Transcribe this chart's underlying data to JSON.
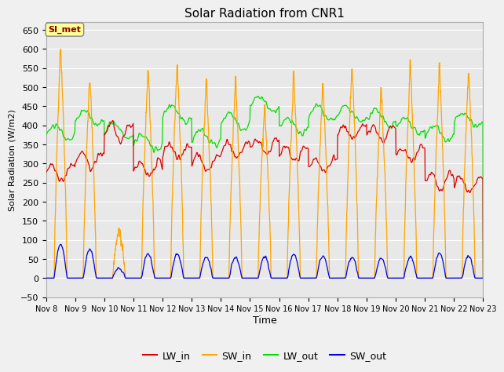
{
  "title": "Solar Radiation from CNR1",
  "ylabel": "Solar Radiation (W/m2)",
  "xlabel": "Time",
  "ylim": [
    -50,
    670
  ],
  "yticks": [
    -50,
    0,
    50,
    100,
    150,
    200,
    250,
    300,
    350,
    400,
    450,
    500,
    550,
    600,
    650
  ],
  "xtick_labels": [
    "Nov 8",
    "Nov 9",
    "Nov 10",
    "Nov 11",
    "Nov 12",
    "Nov 13",
    "Nov 14",
    "Nov 15",
    "Nov 16",
    "Nov 17",
    "Nov 18",
    "Nov 19",
    "Nov 20",
    "Nov 21",
    "Nov 22",
    "Nov 23"
  ],
  "annotation_text": "SI_met",
  "annotation_color": "#8B0000",
  "annotation_bg": "#FFFF99",
  "fig_bg_color": "#F0F0F0",
  "plot_bg_color": "#E8E8E8",
  "grid_color": "#FFFFFF",
  "colors": {
    "LW_in": "#DD0000",
    "SW_in": "#FFA500",
    "LW_out": "#00DD00",
    "SW_out": "#0000DD"
  },
  "legend_entries": [
    "LW_in",
    "SW_in",
    "LW_out",
    "SW_out"
  ],
  "n_days": 15,
  "pts_per_day": 96,
  "SW_in_peaks": [
    610,
    535,
    130,
    555,
    565,
    520,
    520,
    455,
    530,
    510,
    560,
    495,
    560,
    550,
    550
  ],
  "LW_in_base": [
    275,
    310,
    385,
    285,
    330,
    300,
    335,
    345,
    325,
    295,
    380,
    375,
    325,
    255,
    245
  ],
  "LW_out_base": [
    380,
    420,
    385,
    355,
    430,
    368,
    410,
    455,
    400,
    430,
    430,
    418,
    398,
    378,
    415
  ],
  "SW_out_peaks": [
    90,
    75,
    25,
    65,
    62,
    55,
    55,
    55,
    62,
    58,
    55,
    52,
    55,
    65,
    58
  ]
}
